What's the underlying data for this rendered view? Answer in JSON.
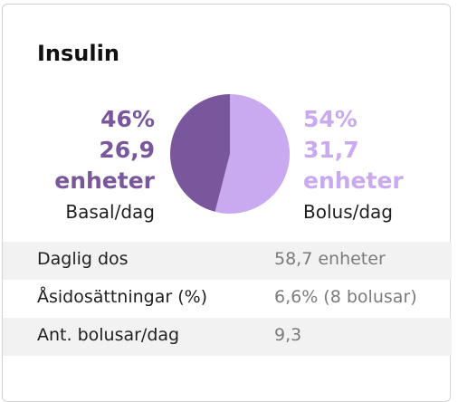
{
  "card": {
    "title": "Insulin"
  },
  "basal": {
    "percent": "46%",
    "units": "26,9",
    "units_label": "enheter",
    "caption": "Basal/dag",
    "color": "#7a579d"
  },
  "bolus": {
    "percent": "54%",
    "units": "31,7",
    "units_label": "enheter",
    "caption": "Bolus/dag",
    "color": "#c9a9ef"
  },
  "pie": {
    "basal_fraction": 0.46,
    "bolus_fraction": 0.54
  },
  "stats": [
    {
      "label": "Daglig dos",
      "value": "58,7 enheter"
    },
    {
      "label": "Åsidosättningar (%)",
      "value": "6,6% (8 bolusar)"
    },
    {
      "label": "Ant. bolusar/dag",
      "value": "9,3"
    }
  ]
}
